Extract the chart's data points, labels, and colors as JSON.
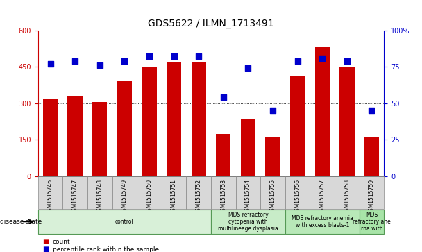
{
  "title": "GDS5622 / ILMN_1713491",
  "samples": [
    "GSM1515746",
    "GSM1515747",
    "GSM1515748",
    "GSM1515749",
    "GSM1515750",
    "GSM1515751",
    "GSM1515752",
    "GSM1515753",
    "GSM1515754",
    "GSM1515755",
    "GSM1515756",
    "GSM1515757",
    "GSM1515758",
    "GSM1515759"
  ],
  "counts": [
    320,
    330,
    305,
    390,
    448,
    468,
    468,
    175,
    235,
    160,
    410,
    530,
    448,
    160
  ],
  "percentiles": [
    77,
    79,
    76,
    79,
    82,
    82,
    82,
    54,
    74,
    45,
    79,
    81,
    79,
    45
  ],
  "bar_color": "#cc0000",
  "dot_color": "#0000cc",
  "left_ylim": [
    0,
    600
  ],
  "right_ylim": [
    0,
    100
  ],
  "left_yticks": [
    0,
    150,
    300,
    450,
    600
  ],
  "right_yticks": [
    0,
    25,
    50,
    75,
    100
  ],
  "right_yticklabels": [
    "0",
    "25",
    "50",
    "75",
    "100%"
  ],
  "grid_values": [
    150,
    300,
    450
  ],
  "disease_groups": [
    {
      "label": "control",
      "start": 0,
      "end": 7,
      "color": "#d8f0d8"
    },
    {
      "label": "MDS refractory\ncytopenia with\nmultilineage dysplasia",
      "start": 7,
      "end": 10,
      "color": "#c8ecc8"
    },
    {
      "label": "MDS refractory anemia\nwith excess blasts-1",
      "start": 10,
      "end": 13,
      "color": "#b8e8b8"
    },
    {
      "label": "MDS\nrefractory ane\nrna with",
      "start": 13,
      "end": 14,
      "color": "#a8e4a8"
    }
  ],
  "disease_state_label": "disease state",
  "legend_count_label": "count",
  "legend_pct_label": "percentile rank within the sample",
  "bg_color": "#ffffff",
  "tick_label_area_color": "#d8d8d8",
  "title_fontsize": 10,
  "tick_fontsize": 7,
  "dot_size": 30
}
